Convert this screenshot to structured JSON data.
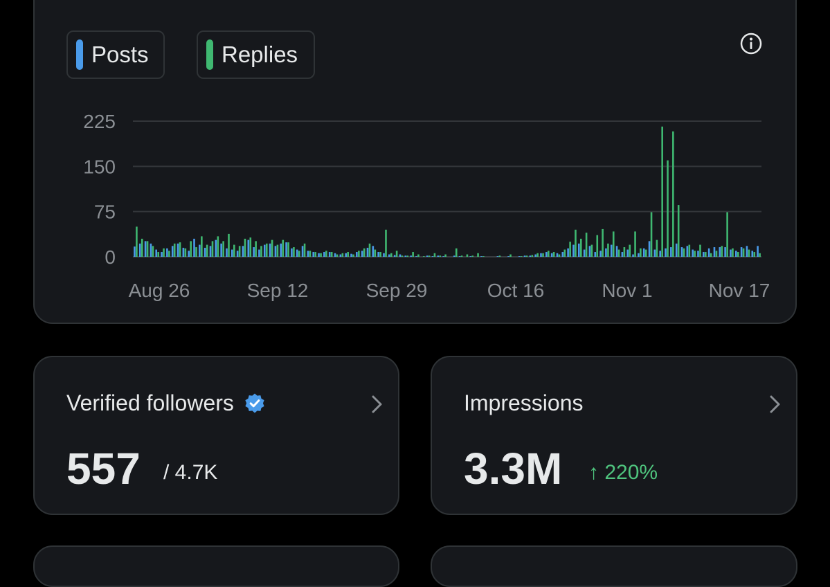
{
  "legend": {
    "posts_label": "Posts",
    "replies_label": "Replies"
  },
  "icons": {
    "info": "info-icon",
    "chevron": "chevron-right-icon",
    "verified": "verified-badge-icon"
  },
  "colors": {
    "posts": "#4a9bea",
    "replies": "#3fb871",
    "background": "#000000",
    "card": "#16181c",
    "positive": "#4fc47e"
  },
  "chart_data": {
    "type": "bar",
    "title": "",
    "xlabel": "",
    "ylabel": "",
    "ylim": [
      0,
      225
    ],
    "yticks": [
      "0",
      "75",
      "150",
      "225"
    ],
    "xticks": [
      "Aug 26",
      "Sep 12",
      "Sep 29",
      "Oct 16",
      "Nov 1",
      "Nov 17"
    ],
    "grid": true,
    "legend_position": "top-left",
    "series": [
      {
        "name": "Posts",
        "values": [
          17,
          22,
          26,
          22,
          12,
          8,
          14,
          18,
          22,
          15,
          10,
          30,
          20,
          15,
          18,
          28,
          22,
          14,
          12,
          10,
          18,
          28,
          16,
          12,
          20,
          22,
          18,
          22,
          24,
          14,
          12,
          18,
          10,
          8,
          6,
          8,
          8,
          6,
          4,
          6,
          5,
          8,
          10,
          15,
          18,
          8,
          6,
          4,
          3,
          4,
          2,
          2,
          1,
          0,
          2,
          1,
          2,
          1,
          0,
          2,
          1,
          0,
          1,
          0,
          1,
          0,
          0,
          1,
          0,
          1,
          0,
          1,
          2,
          2,
          4,
          6,
          8,
          6,
          6,
          8,
          14,
          20,
          22,
          12,
          18,
          8,
          10,
          14,
          20,
          18,
          8,
          12,
          4,
          6,
          14,
          26,
          12,
          10,
          14,
          16,
          22,
          16,
          18,
          12,
          10,
          8,
          14,
          16,
          16,
          16,
          12,
          10,
          16,
          18,
          10,
          18
        ]
      },
      {
        "name": "Replies",
        "values": [
          50,
          30,
          26,
          18,
          8,
          14,
          10,
          22,
          24,
          14,
          26,
          16,
          34,
          20,
          26,
          34,
          26,
          38,
          20,
          18,
          30,
          32,
          26,
          18,
          22,
          28,
          20,
          28,
          24,
          16,
          10,
          22,
          10,
          8,
          6,
          10,
          8,
          4,
          6,
          8,
          4,
          10,
          14,
          22,
          12,
          8,
          45,
          6,
          10,
          2,
          2,
          8,
          4,
          1,
          2,
          6,
          2,
          4,
          0,
          14,
          2,
          4,
          2,
          6,
          1,
          0,
          0,
          2,
          0,
          4,
          0,
          1,
          2,
          3,
          6,
          6,
          10,
          8,
          4,
          12,
          25,
          45,
          30,
          40,
          20,
          36,
          46,
          22,
          42,
          12,
          16,
          20,
          42,
          14,
          12,
          74,
          28,
          216,
          160,
          208,
          86,
          14,
          20,
          10,
          20,
          8,
          6,
          10,
          18,
          74,
          14,
          8,
          14,
          12,
          8,
          6
        ]
      }
    ]
  },
  "followers": {
    "title": "Verified followers",
    "value": "557",
    "total": "/ 4.7K"
  },
  "impressions": {
    "title": "Impressions",
    "value": "3.3M",
    "change": "↑ 220%"
  }
}
